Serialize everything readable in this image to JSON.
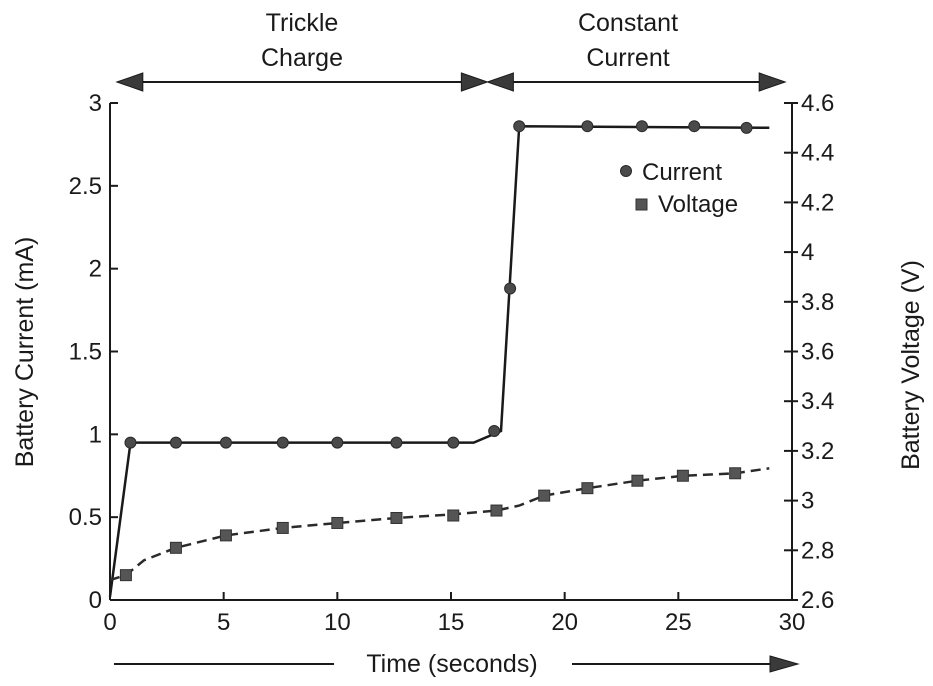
{
  "chart_data": {
    "type": "line",
    "title": "",
    "xlabel": "Time (seconds)",
    "ylabel": "Battery Current (mA)",
    "y2label": "Battery Voltage (V)",
    "xlim": [
      0,
      30
    ],
    "ylim": [
      0,
      3
    ],
    "y2lim": [
      2.6,
      4.6
    ],
    "xticks": [
      "0",
      "5",
      "10",
      "15",
      "20",
      "25",
      "30"
    ],
    "yticks": [
      "0",
      "0.5",
      "1",
      "1.5",
      "2",
      "2.5",
      "3"
    ],
    "y2ticks": [
      "2.6",
      "2.8",
      "3",
      "3.2",
      "3.4",
      "3.6",
      "3.8",
      "4",
      "4.2",
      "4.4",
      "4.6"
    ],
    "grid": false,
    "legend_position": "top-right",
    "series": [
      {
        "name": "Current",
        "axis": "left",
        "marker": "circle",
        "line": "solid",
        "line_x": [
          0,
          0.9,
          16,
          17.2,
          18,
          29
        ],
        "line_y": [
          0.02,
          0.95,
          0.95,
          1.02,
          2.86,
          2.85
        ],
        "marker_x": [
          0.9,
          2.9,
          5.1,
          7.6,
          10,
          12.6,
          15.1,
          16.9,
          17.6,
          18,
          21,
          23.4,
          25.7,
          28
        ],
        "marker_y": [
          0.95,
          0.95,
          0.95,
          0.95,
          0.95,
          0.95,
          0.95,
          1.02,
          1.88,
          2.86,
          2.86,
          2.86,
          2.86,
          2.85
        ]
      },
      {
        "name": "Voltage",
        "axis": "right",
        "marker": "square",
        "line": "dashed",
        "line_x": [
          0,
          0.7,
          1.5,
          2.9,
          5.1,
          7.6,
          10,
          12.6,
          15.1,
          17,
          18,
          19.1,
          21,
          23.2,
          25.2,
          27.5,
          29
        ],
        "line_y": [
          2.68,
          2.7,
          2.76,
          2.81,
          2.86,
          2.89,
          2.91,
          2.93,
          2.945,
          2.96,
          2.98,
          3.02,
          3.05,
          3.08,
          3.1,
          3.11,
          3.13
        ],
        "marker_x": [
          0.7,
          2.9,
          5.1,
          7.6,
          10,
          12.6,
          15.1,
          17,
          19.1,
          21,
          23.2,
          25.2,
          27.5
        ],
        "marker_y": [
          2.7,
          2.81,
          2.86,
          2.89,
          2.91,
          2.93,
          2.94,
          2.96,
          3.02,
          3.05,
          3.08,
          3.1,
          3.11
        ]
      }
    ],
    "annotations": [
      {
        "lines": [
          "Trickle",
          "Charge"
        ],
        "from_x": 0.3,
        "to_x": 16.6
      },
      {
        "lines": [
          "Constant",
          "Current"
        ],
        "from_x": 16.6,
        "to_x": 29.7
      }
    ]
  },
  "colors": {
    "ink": "#1a1a1a",
    "current_marker": "#4a4a4a",
    "voltage_marker": "#555555"
  }
}
